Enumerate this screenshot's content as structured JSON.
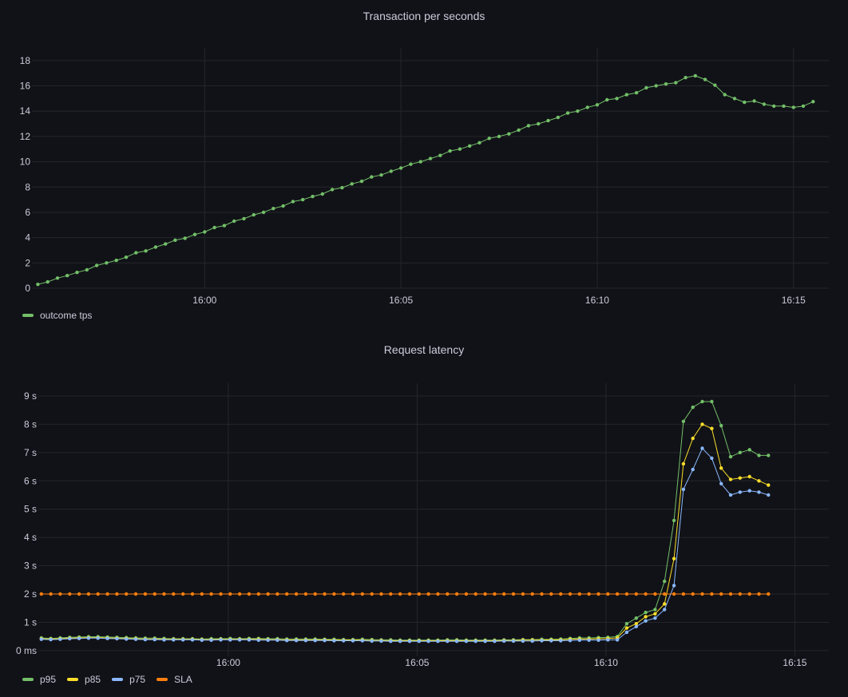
{
  "panels": {
    "tps": {
      "title": "Transaction per seconds",
      "legend": [
        {
          "label": "outcome tps",
          "color": "#73bf69"
        }
      ]
    },
    "latency": {
      "title": "Request latency",
      "legend": [
        {
          "label": "p95",
          "color": "#73bf69"
        },
        {
          "label": "p85",
          "color": "#fade2a"
        },
        {
          "label": "p75",
          "color": "#8ab8ff"
        },
        {
          "label": "SLA",
          "color": "#ff7f0e"
        }
      ]
    }
  },
  "chart_data": [
    {
      "type": "line",
      "title": "Transaction per seconds",
      "xlabel": "",
      "ylabel": "",
      "x_ticks": [
        "16:00",
        "16:05",
        "16:10",
        "16:15"
      ],
      "x_tick_minutes": [
        60,
        65,
        70,
        75
      ],
      "x_range_minutes": [
        55.6,
        75.9
      ],
      "y_ticks": [
        "0",
        "2",
        "4",
        "6",
        "8",
        "10",
        "12",
        "14",
        "16",
        "18"
      ],
      "y_tick_values": [
        0,
        2,
        4,
        6,
        8,
        10,
        12,
        14,
        16,
        18
      ],
      "ylim": [
        0,
        19
      ],
      "grid": true,
      "legend_position": "bottom-left",
      "series": [
        {
          "name": "outcome tps",
          "color": "#73bf69",
          "x_start_minute": 55.75,
          "x_step_minutes": 0.25,
          "values": [
            0.3,
            0.5,
            0.8,
            1.0,
            1.25,
            1.45,
            1.8,
            2.0,
            2.2,
            2.45,
            2.8,
            2.95,
            3.25,
            3.5,
            3.8,
            3.95,
            4.25,
            4.45,
            4.8,
            4.95,
            5.3,
            5.5,
            5.8,
            6.0,
            6.3,
            6.5,
            6.85,
            7.0,
            7.25,
            7.45,
            7.8,
            7.95,
            8.25,
            8.45,
            8.8,
            8.95,
            9.25,
            9.5,
            9.8,
            10.0,
            10.25,
            10.5,
            10.85,
            11.0,
            11.25,
            11.5,
            11.85,
            12.0,
            12.2,
            12.5,
            12.85,
            13.0,
            13.25,
            13.5,
            13.85,
            14.0,
            14.3,
            14.5,
            14.9,
            15.0,
            15.3,
            15.45,
            15.85,
            16.0,
            16.15,
            16.25,
            16.65,
            16.8,
            16.5,
            16.05,
            15.3,
            15.0,
            14.7,
            14.8,
            14.55,
            14.4,
            14.4,
            14.3,
            14.4,
            14.75
          ]
        }
      ]
    },
    {
      "type": "line",
      "title": "Request latency",
      "xlabel": "",
      "ylabel": "",
      "x_ticks": [
        "16:00",
        "16:05",
        "16:10",
        "16:15"
      ],
      "x_tick_minutes": [
        60,
        65,
        70,
        75
      ],
      "x_range_minutes": [
        54.97,
        75.9
      ],
      "y_ticks": [
        "0 ms",
        "1 s",
        "2 s",
        "3 s",
        "4 s",
        "5 s",
        "6 s",
        "7 s",
        "8 s",
        "9 s"
      ],
      "y_tick_values": [
        0,
        1,
        2,
        3,
        4,
        5,
        6,
        7,
        8,
        9
      ],
      "y_unit": "s",
      "ylim": [
        -0.2,
        9.45
      ],
      "grid": true,
      "legend_position": "bottom-left",
      "series": [
        {
          "name": "p95",
          "color": "#73bf69",
          "x_start_minute": 55.05,
          "x_step_minutes": 0.25,
          "values": [
            0.45,
            0.43,
            0.45,
            0.47,
            0.48,
            0.49,
            0.49,
            0.48,
            0.47,
            0.46,
            0.45,
            0.44,
            0.44,
            0.43,
            0.42,
            0.42,
            0.42,
            0.41,
            0.42,
            0.42,
            0.43,
            0.42,
            0.43,
            0.43,
            0.42,
            0.42,
            0.41,
            0.41,
            0.41,
            0.41,
            0.4,
            0.4,
            0.39,
            0.39,
            0.4,
            0.39,
            0.38,
            0.38,
            0.37,
            0.37,
            0.37,
            0.37,
            0.37,
            0.38,
            0.38,
            0.37,
            0.37,
            0.37,
            0.37,
            0.38,
            0.38,
            0.39,
            0.39,
            0.4,
            0.4,
            0.41,
            0.43,
            0.45,
            0.45,
            0.46,
            0.47,
            0.5,
            0.95,
            1.15,
            1.35,
            1.45,
            2.45,
            4.6,
            8.1,
            8.6,
            8.8,
            8.8,
            7.95,
            6.85,
            7.0,
            7.1,
            6.9,
            6.9
          ]
        },
        {
          "name": "p85",
          "color": "#fade2a",
          "x_start_minute": 55.05,
          "x_step_minutes": 0.25,
          "values": [
            0.42,
            0.41,
            0.42,
            0.44,
            0.45,
            0.46,
            0.46,
            0.45,
            0.44,
            0.43,
            0.42,
            0.41,
            0.41,
            0.4,
            0.4,
            0.4,
            0.4,
            0.39,
            0.39,
            0.4,
            0.4,
            0.4,
            0.4,
            0.4,
            0.39,
            0.39,
            0.38,
            0.38,
            0.38,
            0.38,
            0.38,
            0.37,
            0.37,
            0.37,
            0.37,
            0.36,
            0.36,
            0.35,
            0.35,
            0.35,
            0.35,
            0.35,
            0.35,
            0.35,
            0.35,
            0.35,
            0.35,
            0.35,
            0.35,
            0.36,
            0.36,
            0.37,
            0.37,
            0.37,
            0.38,
            0.38,
            0.4,
            0.41,
            0.41,
            0.42,
            0.43,
            0.45,
            0.8,
            0.95,
            1.2,
            1.3,
            1.65,
            3.25,
            6.6,
            7.5,
            8.0,
            7.85,
            6.45,
            6.05,
            6.1,
            6.15,
            6.0,
            5.85
          ]
        },
        {
          "name": "p75",
          "color": "#8ab8ff",
          "x_start_minute": 55.05,
          "x_step_minutes": 0.25,
          "values": [
            0.4,
            0.39,
            0.4,
            0.42,
            0.43,
            0.44,
            0.44,
            0.43,
            0.42,
            0.41,
            0.4,
            0.39,
            0.39,
            0.38,
            0.38,
            0.38,
            0.38,
            0.37,
            0.37,
            0.38,
            0.38,
            0.38,
            0.38,
            0.37,
            0.37,
            0.37,
            0.36,
            0.36,
            0.36,
            0.36,
            0.36,
            0.35,
            0.35,
            0.35,
            0.35,
            0.34,
            0.34,
            0.33,
            0.33,
            0.33,
            0.33,
            0.33,
            0.33,
            0.33,
            0.33,
            0.33,
            0.33,
            0.33,
            0.33,
            0.34,
            0.34,
            0.34,
            0.34,
            0.35,
            0.35,
            0.35,
            0.36,
            0.37,
            0.37,
            0.37,
            0.38,
            0.38,
            0.65,
            0.85,
            1.05,
            1.15,
            1.45,
            2.3,
            5.7,
            6.4,
            7.15,
            6.8,
            5.9,
            5.5,
            5.6,
            5.65,
            5.6,
            5.5
          ]
        },
        {
          "name": "SLA",
          "color": "#ff7f0e",
          "x_start_minute": 55.05,
          "x_step_minutes": 0.25,
          "values": [
            2,
            2,
            2,
            2,
            2,
            2,
            2,
            2,
            2,
            2,
            2,
            2,
            2,
            2,
            2,
            2,
            2,
            2,
            2,
            2,
            2,
            2,
            2,
            2,
            2,
            2,
            2,
            2,
            2,
            2,
            2,
            2,
            2,
            2,
            2,
            2,
            2,
            2,
            2,
            2,
            2,
            2,
            2,
            2,
            2,
            2,
            2,
            2,
            2,
            2,
            2,
            2,
            2,
            2,
            2,
            2,
            2,
            2,
            2,
            2,
            2,
            2,
            2,
            2,
            2,
            2,
            2,
            2,
            2,
            2,
            2,
            2,
            2,
            2,
            2,
            2,
            2,
            2
          ]
        }
      ]
    }
  ]
}
